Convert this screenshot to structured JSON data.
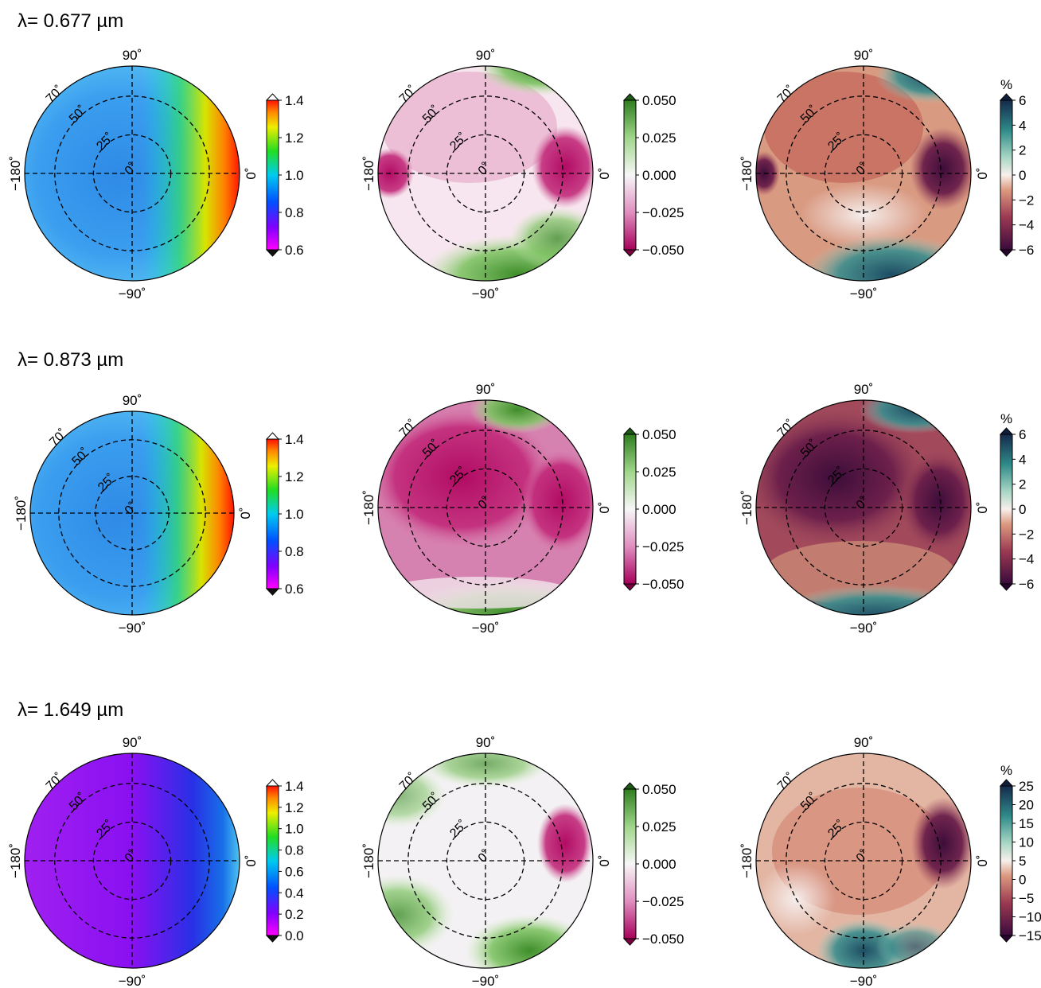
{
  "figure": {
    "rows": [
      {
        "label": "λ= 0.677 µm"
      },
      {
        "label": "λ= 0.873 µm"
      },
      {
        "label": "λ= 1.649 µm"
      }
    ]
  },
  "chart_data": {
    "type": "heatmap",
    "projection": "polar disk",
    "longitude_labels": [
      "90˚",
      "−180˚",
      "0˚",
      "−90˚"
    ],
    "latitude_labels": [
      "70˚",
      "50˚",
      "25˚",
      "0˚"
    ],
    "grid": true,
    "panels": [
      {
        "row": 0,
        "col": 0,
        "colormap": "rainbow",
        "colorbar_ticks": [
          "0.6",
          "0.8",
          "1.0",
          "1.2",
          "1.4"
        ],
        "clim": [
          0.6,
          1.4
        ],
        "unit": "",
        "colorbar_extend": "both"
      },
      {
        "row": 0,
        "col": 1,
        "colormap": "pink-white-green",
        "colorbar_ticks": [
          "−0.050",
          "−0.025",
          "0.000",
          "0.025",
          "0.050"
        ],
        "clim": [
          -0.05,
          0.05
        ],
        "unit": "",
        "colorbar_extend": "both"
      },
      {
        "row": 0,
        "col": 2,
        "colormap": "brown-white-teal",
        "colorbar_ticks": [
          "−6",
          "−4",
          "−2",
          "0",
          "2",
          "4",
          "6"
        ],
        "clim": [
          -6,
          6
        ],
        "unit": "%",
        "colorbar_extend": "both"
      },
      {
        "row": 1,
        "col": 0,
        "colormap": "rainbow",
        "colorbar_ticks": [
          "0.6",
          "0.8",
          "1.0",
          "1.2",
          "1.4"
        ],
        "clim": [
          0.6,
          1.4
        ],
        "unit": "",
        "colorbar_extend": "both"
      },
      {
        "row": 1,
        "col": 1,
        "colormap": "pink-white-green",
        "colorbar_ticks": [
          "−0.050",
          "−0.025",
          "0.000",
          "0.025",
          "0.050"
        ],
        "clim": [
          -0.05,
          0.05
        ],
        "unit": "",
        "colorbar_extend": "both"
      },
      {
        "row": 1,
        "col": 2,
        "colormap": "brown-white-teal",
        "colorbar_ticks": [
          "−6",
          "−4",
          "−2",
          "0",
          "2",
          "4",
          "6"
        ],
        "clim": [
          -6,
          6
        ],
        "unit": "%",
        "colorbar_extend": "both"
      },
      {
        "row": 2,
        "col": 0,
        "colormap": "rainbow",
        "colorbar_ticks": [
          "0.0",
          "0.2",
          "0.4",
          "0.6",
          "0.8",
          "1.0",
          "1.2",
          "1.4"
        ],
        "clim": [
          0.0,
          1.4
        ],
        "unit": "",
        "colorbar_extend": "both"
      },
      {
        "row": 2,
        "col": 1,
        "colormap": "pink-white-green",
        "colorbar_ticks": [
          "−0.050",
          "−0.025",
          "0.000",
          "0.025",
          "0.050"
        ],
        "clim": [
          -0.05,
          0.05
        ],
        "unit": "",
        "colorbar_extend": "both"
      },
      {
        "row": 2,
        "col": 2,
        "colormap": "brown-white-teal",
        "colorbar_ticks": [
          "−15",
          "−10",
          "−5",
          "0",
          "5",
          "10",
          "15",
          "20",
          "25"
        ],
        "clim": [
          -15,
          25
        ],
        "unit": "%",
        "colorbar_extend": "both"
      }
    ]
  }
}
